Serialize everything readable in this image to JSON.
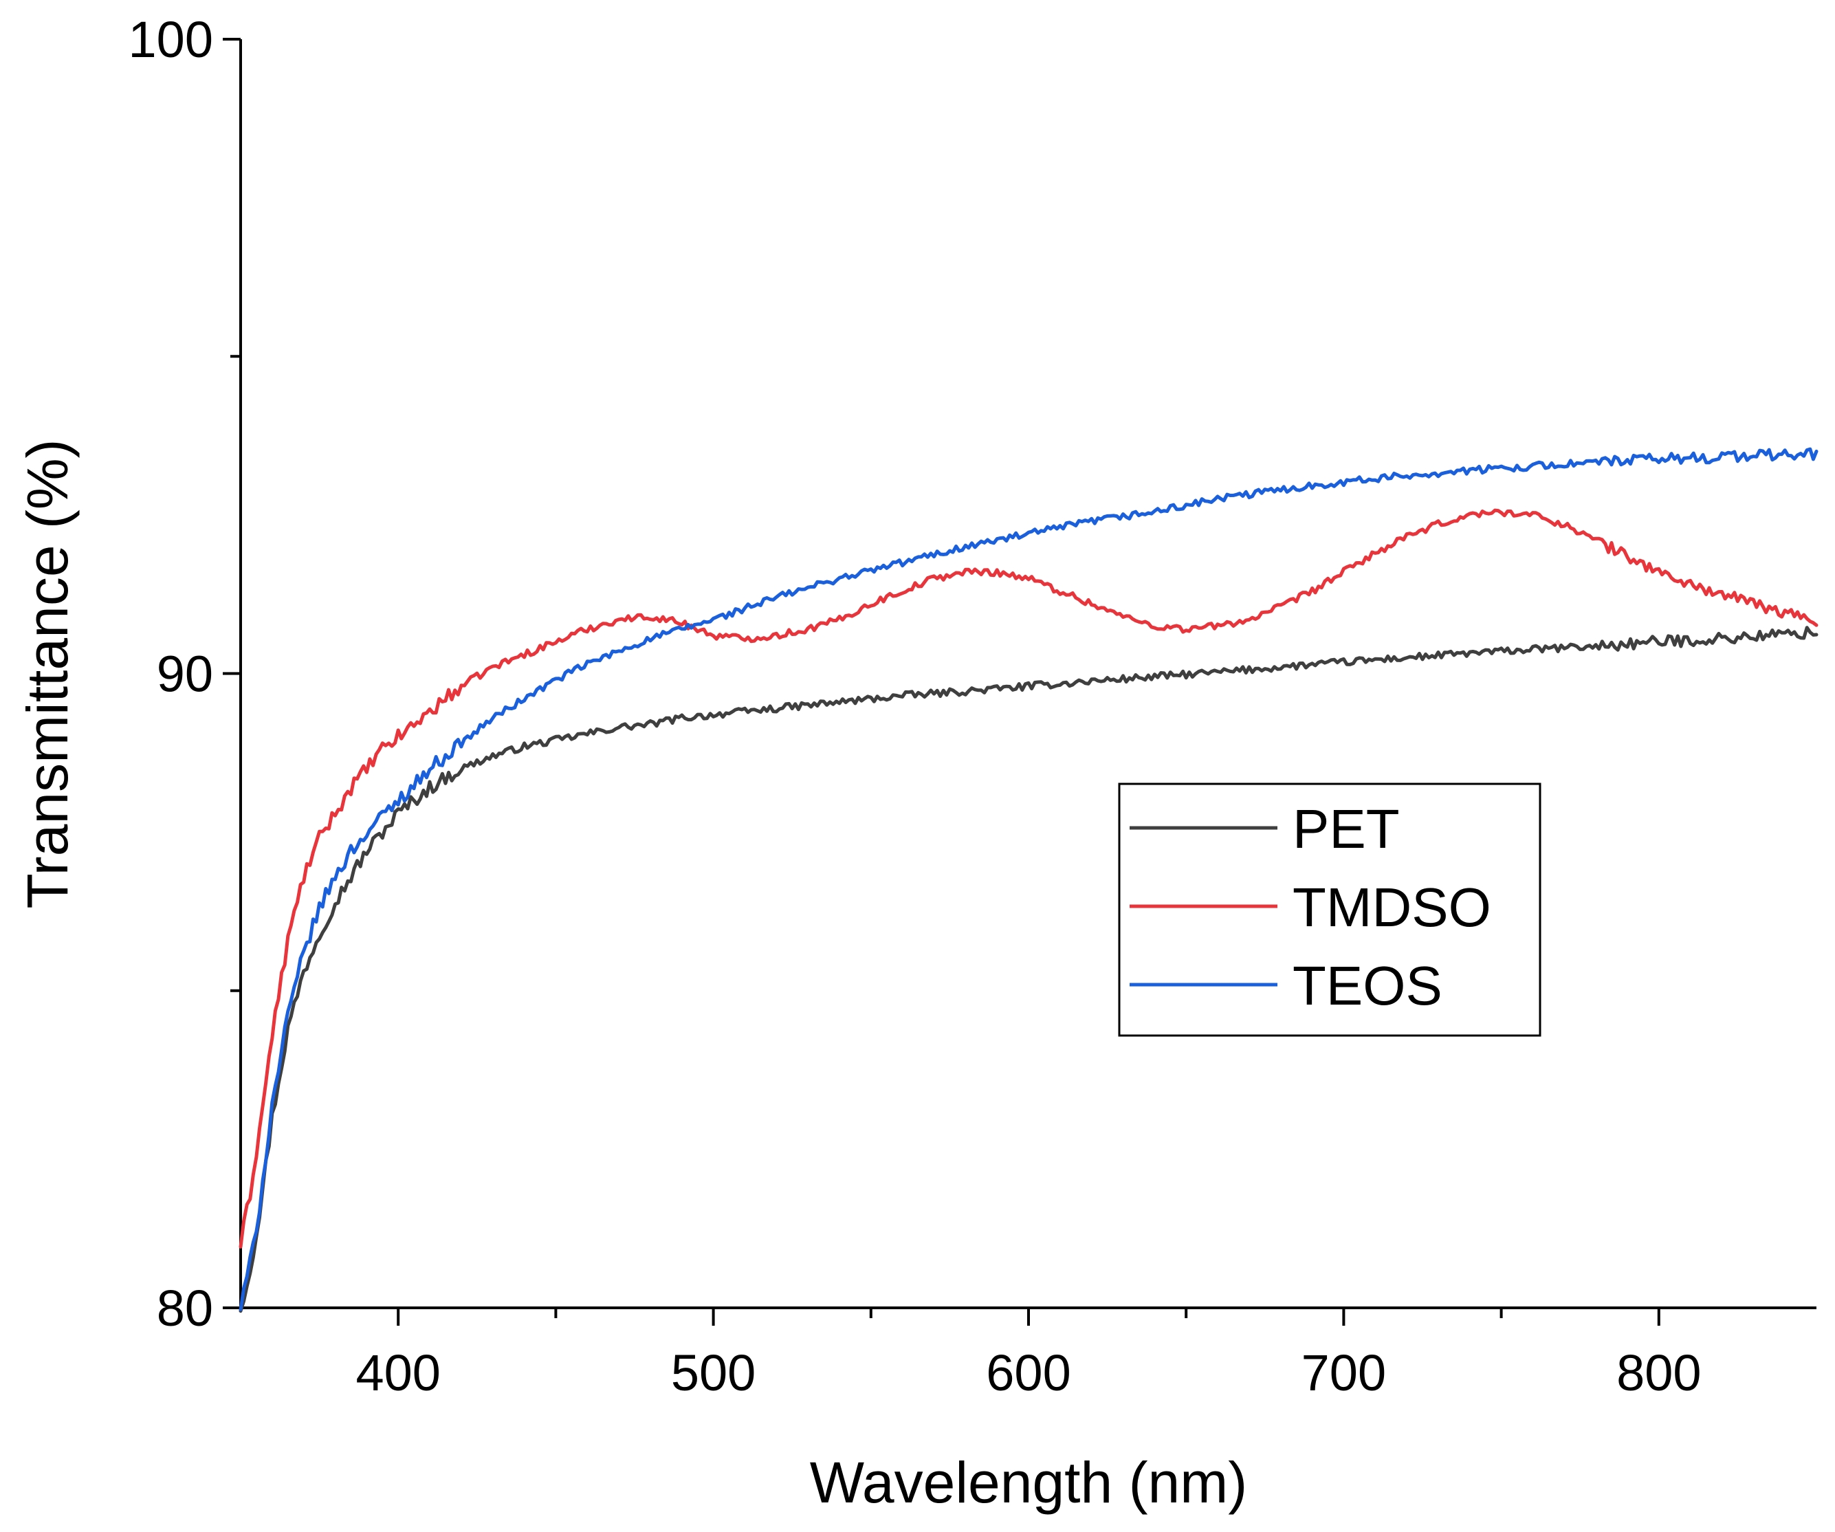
{
  "chart_data": {
    "type": "line",
    "title": "",
    "xlabel": "Wavelength (nm)",
    "ylabel": "Transmittance (%)",
    "xlim": [
      350,
      850
    ],
    "ylim": [
      80,
      100
    ],
    "x_major_ticks": [
      400,
      500,
      600,
      700,
      800
    ],
    "x_minor_ticks": [
      450,
      550,
      650,
      750
    ],
    "y_major_ticks": [
      80,
      90,
      100
    ],
    "y_minor_ticks": [
      85,
      95
    ],
    "legend_position": "center-right",
    "grid": false,
    "series": [
      {
        "name": "PET",
        "color": "#3f3f3f",
        "x": [
          350,
          353,
          356,
          360,
          365,
          370,
          375,
          380,
          385,
          390,
          395,
          400,
          410,
          420,
          430,
          440,
          450,
          460,
          470,
          480,
          490,
          500,
          520,
          540,
          560,
          580,
          600,
          620,
          640,
          660,
          680,
          700,
          720,
          740,
          760,
          780,
          800,
          820,
          840,
          850
        ],
        "y": [
          80.0,
          80.6,
          81.5,
          83.0,
          84.4,
          85.3,
          85.9,
          86.4,
          86.8,
          87.2,
          87.5,
          87.8,
          88.2,
          88.5,
          88.7,
          88.85,
          88.95,
          89.05,
          89.15,
          89.2,
          89.3,
          89.35,
          89.45,
          89.55,
          89.65,
          89.72,
          89.8,
          89.88,
          89.95,
          90.02,
          90.1,
          90.18,
          90.25,
          90.32,
          90.38,
          90.43,
          90.5,
          90.55,
          90.62,
          90.65
        ]
      },
      {
        "name": "TMDSO",
        "color": "#e8343b",
        "x": [
          350,
          353,
          356,
          360,
          365,
          370,
          375,
          380,
          385,
          390,
          395,
          400,
          410,
          420,
          430,
          440,
          450,
          460,
          470,
          480,
          490,
          500,
          510,
          520,
          530,
          540,
          550,
          560,
          570,
          580,
          590,
          600,
          610,
          620,
          630,
          640,
          650,
          660,
          670,
          680,
          690,
          700,
          710,
          720,
          730,
          740,
          750,
          760,
          770,
          780,
          790,
          800,
          810,
          820,
          830,
          840,
          850
        ],
        "y": [
          81.0,
          81.8,
          82.8,
          84.3,
          85.8,
          86.8,
          87.4,
          87.8,
          88.2,
          88.5,
          88.8,
          89.0,
          89.4,
          89.8,
          90.1,
          90.3,
          90.5,
          90.7,
          90.85,
          90.9,
          90.8,
          90.6,
          90.55,
          90.6,
          90.7,
          90.85,
          91.1,
          91.3,
          91.5,
          91.6,
          91.6,
          91.5,
          91.3,
          91.1,
          90.9,
          90.75,
          90.7,
          90.75,
          90.85,
          91.05,
          91.3,
          91.6,
          91.9,
          92.15,
          92.35,
          92.5,
          92.55,
          92.5,
          92.35,
          92.1,
          91.85,
          91.6,
          91.4,
          91.25,
          91.1,
          90.95,
          90.85
        ]
      },
      {
        "name": "TEOS",
        "color": "#1a5fdb",
        "x": [
          350,
          353,
          356,
          360,
          365,
          370,
          375,
          380,
          385,
          390,
          395,
          400,
          410,
          420,
          430,
          440,
          450,
          460,
          470,
          480,
          490,
          500,
          520,
          540,
          560,
          580,
          600,
          620,
          640,
          660,
          680,
          700,
          720,
          740,
          760,
          780,
          800,
          820,
          840,
          850
        ],
        "y": [
          80.0,
          80.7,
          81.6,
          83.2,
          84.6,
          85.6,
          86.3,
          86.8,
          87.2,
          87.5,
          87.75,
          88.0,
          88.5,
          88.9,
          89.3,
          89.6,
          89.9,
          90.15,
          90.35,
          90.55,
          90.7,
          90.85,
          91.2,
          91.5,
          91.75,
          92.0,
          92.2,
          92.4,
          92.55,
          92.75,
          92.9,
          93.02,
          93.12,
          93.2,
          93.27,
          93.33,
          93.38,
          93.42,
          93.45,
          93.46
        ]
      }
    ]
  }
}
